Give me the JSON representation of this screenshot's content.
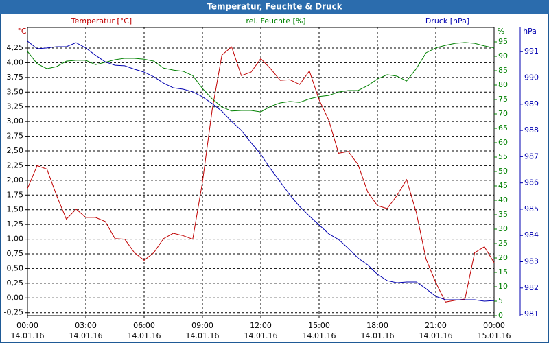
{
  "chart_data": {
    "type": "line",
    "title": "Temperatur, Feuchte & Druck",
    "y_label": "Temperatur [°C]",
    "y_unit": "°C",
    "y2_label": "rel. Feuchte [%]",
    "y2_unit": "%",
    "y3_label": "Druck [hPa]",
    "y3_unit": "hPa",
    "xlim": [
      0,
      24
    ],
    "xticks": [
      {
        "value": 0,
        "label": "00:00"
      },
      {
        "value": 3,
        "label": "03:00"
      },
      {
        "value": 6,
        "label": "06:00"
      },
      {
        "value": 9,
        "label": "09:00"
      },
      {
        "value": 12,
        "label": "12:00"
      },
      {
        "value": 15,
        "label": "15:00"
      },
      {
        "value": 18,
        "label": "18:00"
      },
      {
        "value": 21,
        "label": "21:00"
      },
      {
        "value": 24,
        "label": "00:00"
      }
    ],
    "xtick_dates": [
      "14.01.16",
      "14.01.16",
      "14.01.16",
      "14.01.16",
      "14.01.16",
      "14.01.16",
      "14.01.16",
      "14.01.16",
      "15.01.16"
    ],
    "ylim": [
      -0.3,
      4.6
    ],
    "yticks": [
      {
        "value": -0.25,
        "label": "-0,25"
      },
      {
        "value": 0,
        "label": "0,00"
      },
      {
        "value": 0.25,
        "label": "0,25"
      },
      {
        "value": 0.5,
        "label": "0,50"
      },
      {
        "value": 0.75,
        "label": "0,75"
      },
      {
        "value": 1,
        "label": "1,00"
      },
      {
        "value": 1.25,
        "label": "1,25"
      },
      {
        "value": 1.5,
        "label": "1,50"
      },
      {
        "value": 1.75,
        "label": "1,75"
      },
      {
        "value": 2,
        "label": "2,00"
      },
      {
        "value": 2.25,
        "label": "2,25"
      },
      {
        "value": 2.5,
        "label": "2,50"
      },
      {
        "value": 2.75,
        "label": "2,75"
      },
      {
        "value": 3,
        "label": "3,00"
      },
      {
        "value": 3.25,
        "label": "3,25"
      },
      {
        "value": 3.5,
        "label": "3,50"
      },
      {
        "value": 3.75,
        "label": "3,75"
      },
      {
        "value": 4,
        "label": "4,00"
      },
      {
        "value": 4.25,
        "label": "4,25"
      }
    ],
    "y2lim": [
      0,
      100
    ],
    "y2ticks": [
      0,
      5,
      10,
      15,
      20,
      25,
      30,
      35,
      40,
      45,
      50,
      55,
      60,
      65,
      70,
      75,
      80,
      85,
      90,
      95
    ],
    "y3lim": [
      980.95,
      991.92
    ],
    "y3ticks": [
      981,
      982,
      983,
      984,
      985,
      986,
      987,
      988,
      989,
      990,
      991
    ],
    "grid": true,
    "x": [
      0,
      0.5,
      1,
      1.5,
      2,
      2.5,
      3,
      3.5,
      4,
      4.5,
      5,
      5.5,
      6,
      6.5,
      7,
      7.5,
      8,
      8.5,
      9,
      9.5,
      10,
      10.5,
      11,
      11.5,
      12,
      12.5,
      13,
      13.5,
      14,
      14.5,
      15,
      15.5,
      16,
      16.5,
      17,
      17.5,
      18,
      18.5,
      19,
      19.5,
      20,
      20.5,
      21,
      21.5,
      22,
      22.5,
      23,
      23.5,
      24
    ],
    "series": [
      {
        "name": "Temperatur [°C]",
        "color": "#c00000",
        "axis": "y",
        "values": [
          1.86,
          2.25,
          2.19,
          1.74,
          1.34,
          1.51,
          1.37,
          1.37,
          1.3,
          1.01,
          1.0,
          0.77,
          0.64,
          0.77,
          1.01,
          1.1,
          1.06,
          1.0,
          1.97,
          3.2,
          4.13,
          4.27,
          3.78,
          3.84,
          4.07,
          3.9,
          3.7,
          3.71,
          3.63,
          3.86,
          3.37,
          3.02,
          2.46,
          2.49,
          2.27,
          1.8,
          1.57,
          1.52,
          1.74,
          2.01,
          1.45,
          0.66,
          0.26,
          -0.07,
          -0.04,
          -0.02,
          0.77,
          0.87,
          0.6
        ]
      },
      {
        "name": "rel. Feuchte [%]",
        "color": "#008000",
        "axis": "y2",
        "values": [
          91.7,
          87.4,
          85.7,
          86.4,
          88.3,
          88.6,
          88.6,
          87.1,
          87.9,
          88.8,
          89.3,
          89.3,
          89.0,
          88.3,
          85.9,
          85.2,
          84.8,
          83.3,
          78.8,
          75.2,
          72.4,
          71.0,
          71.2,
          71.2,
          70.7,
          72.6,
          73.8,
          74.3,
          74.0,
          75.2,
          76.0,
          76.4,
          77.6,
          78.1,
          78.1,
          79.8,
          82.1,
          83.6,
          83.1,
          81.4,
          85.7,
          91.2,
          92.9,
          93.8,
          94.5,
          94.8,
          94.5,
          93.6,
          92.9
        ]
      },
      {
        "name": "Druck [hPa]",
        "color": "#0000b0",
        "axis": "y3",
        "values": [
          991.4,
          991.11,
          991.14,
          991.19,
          991.19,
          991.34,
          991.14,
          990.86,
          990.61,
          990.48,
          990.46,
          990.33,
          990.22,
          990.04,
          989.8,
          989.62,
          989.57,
          989.47,
          989.28,
          989.02,
          988.73,
          988.34,
          988.0,
          987.53,
          987.09,
          986.54,
          986.04,
          985.54,
          985.1,
          984.74,
          984.4,
          984.06,
          983.85,
          983.51,
          983.14,
          982.88,
          982.52,
          982.28,
          982.2,
          982.23,
          982.23,
          981.97,
          981.68,
          981.55,
          981.55,
          981.55,
          981.55,
          981.5,
          981.52
        ]
      }
    ]
  }
}
